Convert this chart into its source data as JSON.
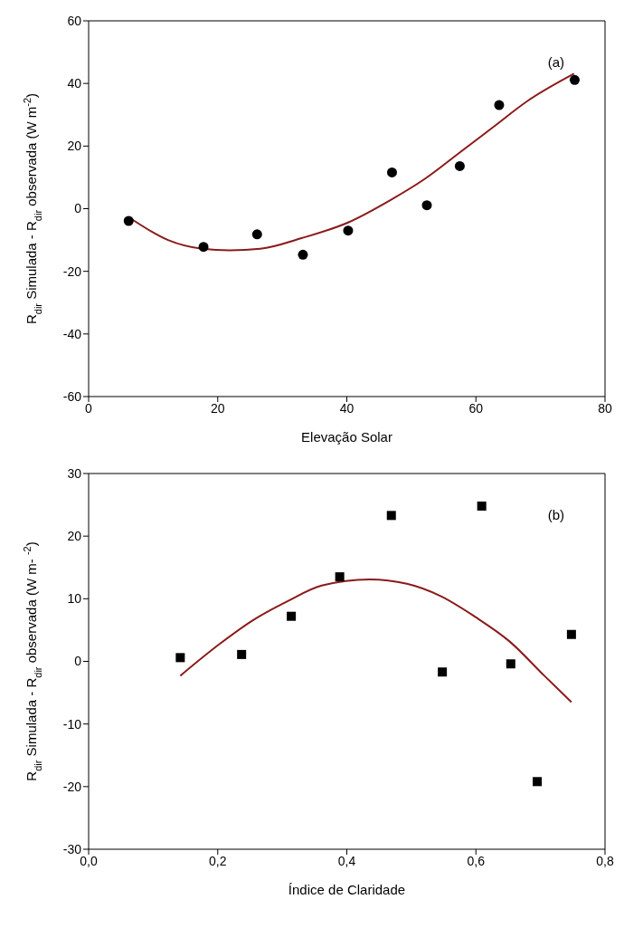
{
  "chart_data": [
    {
      "type": "scatter",
      "xlabel": "Elevação Solar",
      "ylabel": "R$_{dir}$ Simulada - R$_{dir}$ observada (W m$^{-2}$)",
      "annotations": [
        "(a)"
      ],
      "xlim": [
        0,
        80
      ],
      "xticks": [
        0,
        20,
        40,
        60,
        80
      ],
      "ylim": [
        -60,
        60
      ],
      "yticks": [
        -60,
        -40,
        -20,
        0,
        20,
        40,
        60
      ],
      "series": [
        {
          "type": "scatter",
          "marker": "circle",
          "color": "#000000",
          "x": [
            6.2,
            17.8,
            26.1,
            33.2,
            40.2,
            47.0,
            52.4,
            57.5,
            63.6,
            75.3
          ],
          "values": [
            -3.9,
            -12.2,
            -8.2,
            -14.7,
            -7.0,
            11.6,
            1.1,
            13.6,
            33.1,
            41.1
          ]
        },
        {
          "type": "line",
          "marker": "none",
          "color": "#8b1a1a",
          "x": [
            6.5,
            12.3,
            17.6,
            21.8,
            26.6,
            33,
            40.2,
            46.8,
            52,
            57.4,
            62.7,
            68,
            75.2
          ],
          "values": [
            -3.1,
            -10,
            -12.8,
            -13.3,
            -12.8,
            -9.4,
            -4.4,
            2.8,
            9.4,
            17.8,
            26.1,
            34.4,
            43.1
          ]
        }
      ]
    },
    {
      "type": "scatter",
      "xlabel": "Índice de Claridade",
      "ylabel": "R$_{dir}$ Simulada - R$_{dir}$ observada (W m- $^{-2}$)",
      "annotations": [
        "(b)"
      ],
      "xlim": [
        0,
        0.8
      ],
      "xticks": [
        {
          "value": 0,
          "label": "0,0"
        },
        {
          "value": 0.2,
          "label": "0,2"
        },
        {
          "value": 0.4,
          "label": "0,4"
        },
        {
          "value": 0.6,
          "label": "0,6"
        },
        {
          "value": 0.8,
          "label": "0,8"
        }
      ],
      "ylim": [
        -30,
        30
      ],
      "yticks": [
        -30,
        -20,
        -10,
        0,
        10,
        20,
        30
      ],
      "series": [
        {
          "type": "scatter",
          "marker": "square",
          "color": "#000000",
          "x": [
            0.142,
            0.237,
            0.314,
            0.389,
            0.469,
            0.548,
            0.609,
            0.654,
            0.695,
            0.748
          ],
          "values": [
            0.6,
            1.1,
            7.2,
            13.5,
            23.3,
            -1.7,
            24.8,
            -0.4,
            -19.2,
            4.3
          ]
        },
        {
          "type": "line",
          "marker": "none",
          "color": "#8b1a1a",
          "x": [
            0.142,
            0.202,
            0.255,
            0.308,
            0.361,
            0.435,
            0.493,
            0.546,
            0.599,
            0.652,
            0.706,
            0.748
          ],
          "values": [
            -2.3,
            2.7,
            6.6,
            9.6,
            12.1,
            13.1,
            12.4,
            10.4,
            7.1,
            3.2,
            -2.3,
            -6.5
          ]
        }
      ]
    }
  ]
}
